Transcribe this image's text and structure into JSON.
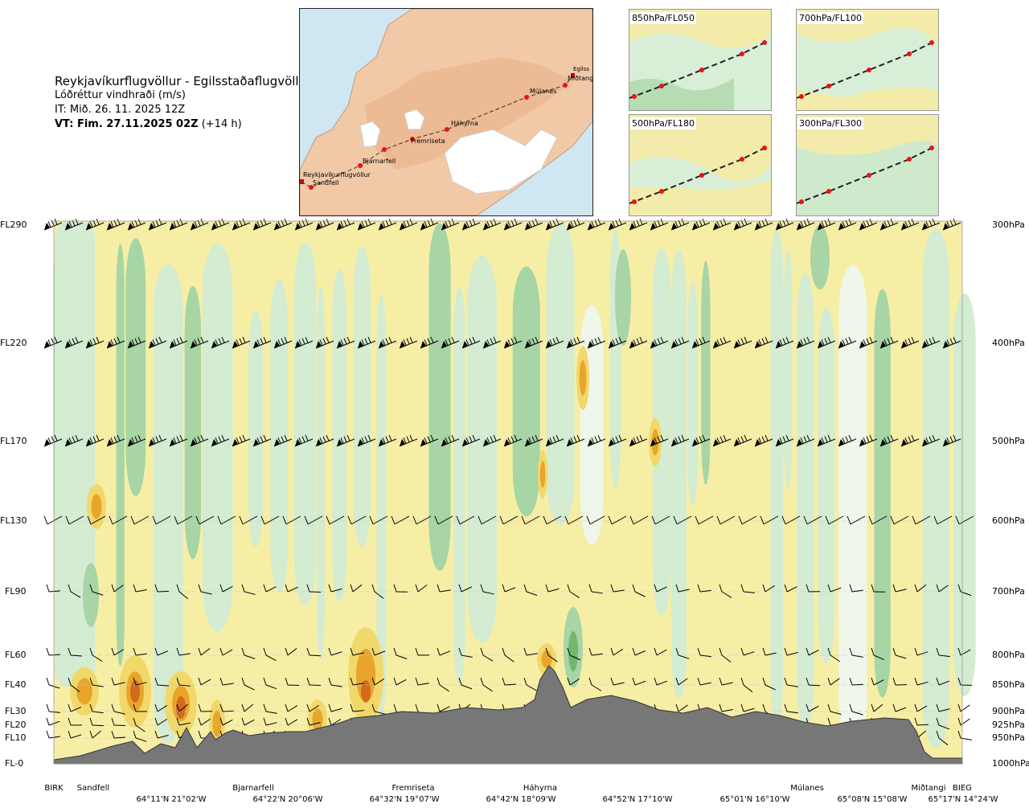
{
  "header": {
    "title": "Reykjavíkurflugvöllur - Egilsstaðaflugvöllur",
    "subtitle": "Lóðréttur vindhraði (m/s)",
    "issue": "IT: Mið. 26. 11. 2025 12Z",
    "valid_bold": "VT: Fim. 27.11.2025 02Z",
    "valid_plus": "(+14 h)"
  },
  "route_map": {
    "stations": [
      "Reykjavíkurflugvöllur",
      "Sandfell",
      "Bjarnarfell",
      "Fremriseta",
      "Háhyrna",
      "Múlanes",
      "Miðtangi",
      "Egilss"
    ]
  },
  "insets": [
    {
      "label": "850hPa/FL050"
    },
    {
      "label": "700hPa/FL100"
    },
    {
      "label": "500hPa/FL180"
    },
    {
      "label": "300hPa/FL300"
    }
  ],
  "chart_data": {
    "type": "heatmap",
    "title": "Lóðréttur vindhraði (m/s)",
    "left_axis": [
      "FL290",
      "FL220",
      "FL170",
      "FL130",
      "FL90",
      "FL60",
      "FL40",
      "FL30",
      "FL20",
      "FL10",
      "FL-0"
    ],
    "right_axis": [
      "300hPa",
      "400hPa",
      "500hPa",
      "600hPa",
      "700hPa",
      "800hPa",
      "850hPa",
      "900hPa",
      "925hPa",
      "950hPa",
      "1000hPa"
    ],
    "pressure_levels_hpa": [
      300,
      400,
      500,
      600,
      700,
      800,
      850,
      900,
      925,
      950,
      1000
    ],
    "waypoints": [
      "BIRK",
      "Sandfell",
      "Bjarnarfell",
      "Fremriseta",
      "Háhyrna",
      "Múlanes",
      "Miðtangi",
      "BIEG"
    ],
    "coordinates": [
      "64°11'N 21°02'W",
      "64°22'N 20°06'W",
      "64°32'N 19°07'W",
      "64°42'N 18°09'W",
      "64°52'N 17°10'W",
      "65°01'N 16°10'W",
      "65°08'N 15°08'W",
      "65°17'N 14°24'W"
    ],
    "colors": {
      "updraft_light": "#f7eea6",
      "updraft_mid": "#f2d86a",
      "updraft_strong": "#e8a52c",
      "updraft_max": "#d36a1e",
      "downdraft_light": "#d3ecd2",
      "downdraft_mid": "#a7d5a6",
      "downdraft_strong": "#6fb86e",
      "terrain": "#777777"
    }
  }
}
